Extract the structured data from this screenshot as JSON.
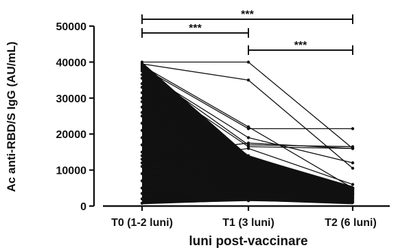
{
  "chart_data": {
    "type": "line",
    "title": "",
    "xlabel": "luni post-vaccinare",
    "ylabel": "Ac anti-RBD/S IgG (AU/mL)",
    "categories": [
      "T0 (1-2 luni)",
      "T1 (3 luni)",
      "T2 (6 luni)"
    ],
    "ylim": [
      0,
      50000
    ],
    "yticks": [
      0,
      10000,
      20000,
      30000,
      40000,
      50000
    ],
    "yticklabels": [
      "0",
      "10000",
      "20000",
      "30000",
      "40000",
      "50000"
    ],
    "grid": false,
    "legend": "none",
    "line_color": "#111111",
    "series": [
      {
        "values": [
          40000,
          40000,
          16000
        ]
      },
      {
        "values": [
          39500,
          35000,
          10500
        ]
      },
      {
        "values": [
          39000,
          22000,
          5000
        ]
      },
      {
        "values": [
          38500,
          21500,
          21500
        ]
      },
      {
        "values": [
          38000,
          17000,
          16500
        ]
      },
      {
        "values": [
          37500,
          19000,
          12000
        ]
      },
      {
        "values": [
          36500,
          16500,
          16000
        ]
      },
      {
        "values": [
          35500,
          14000,
          5000
        ]
      },
      {
        "values": [
          34000,
          13500,
          5000
        ]
      },
      {
        "values": [
          33000,
          13000,
          5000
        ]
      },
      {
        "values": [
          31500,
          12500,
          5000
        ]
      },
      {
        "values": [
          30000,
          12000,
          5000
        ]
      },
      {
        "values": [
          29000,
          11500,
          5000
        ]
      },
      {
        "values": [
          27500,
          11000,
          4800
        ]
      },
      {
        "values": [
          26000,
          10500,
          4600
        ]
      },
      {
        "values": [
          25000,
          10000,
          4500
        ]
      },
      {
        "values": [
          23000,
          9500,
          4300
        ]
      },
      {
        "values": [
          21000,
          9000,
          4200
        ]
      },
      {
        "values": [
          19000,
          8500,
          4000
        ]
      },
      {
        "values": [
          17000,
          8000,
          3800
        ]
      },
      {
        "values": [
          15000,
          7500,
          3600
        ]
      },
      {
        "values": [
          13000,
          7000,
          3400
        ]
      },
      {
        "values": [
          11000,
          6500,
          3200
        ]
      },
      {
        "values": [
          9000,
          6000,
          3000
        ]
      },
      {
        "values": [
          7000,
          5000,
          2600
        ]
      },
      {
        "values": [
          5000,
          4000,
          2300
        ]
      },
      {
        "values": [
          3500,
          3000,
          2000
        ]
      },
      {
        "values": [
          2000,
          2000,
          1500
        ]
      },
      {
        "values": [
          800,
          1500,
          1000
        ]
      },
      {
        "values": [
          12000,
          16000,
          6000
        ]
      },
      {
        "values": [
          14000,
          17500,
          16000
        ]
      }
    ],
    "fill_region": {
      "upper": [
        40000,
        14000,
        5500
      ],
      "lower": [
        500,
        1500,
        500
      ]
    },
    "significance": [
      {
        "from": 0,
        "to": 2,
        "label": "***"
      },
      {
        "from": 0,
        "to": 1,
        "label": "***"
      },
      {
        "from": 1,
        "to": 2,
        "label": "***"
      }
    ]
  }
}
